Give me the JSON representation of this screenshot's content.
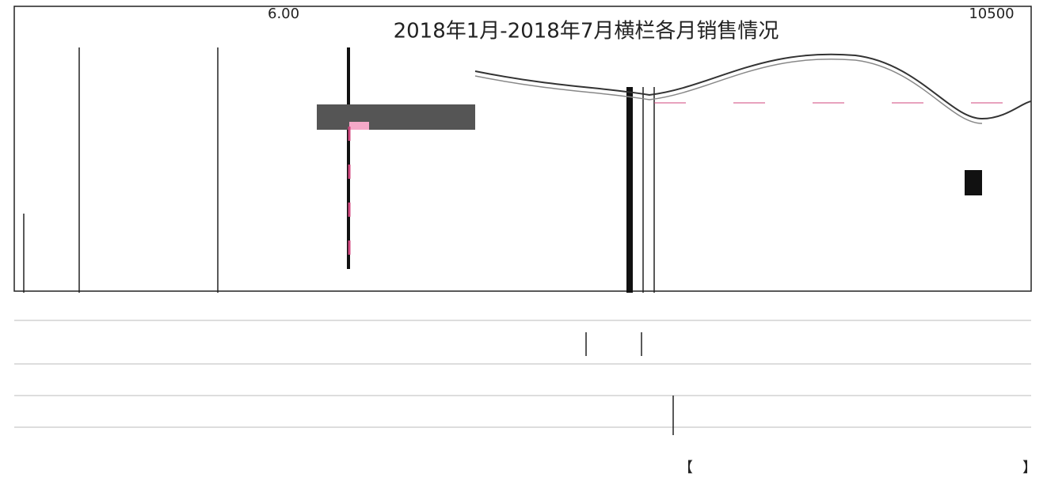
{
  "header": {
    "title": "2018年1月-2018年7月横栏各月销售情况",
    "left_axis_top": "6.00",
    "right_axis_top": "10500"
  },
  "footer": {
    "bracket_open": "【",
    "bracket_close": "】"
  }
}
